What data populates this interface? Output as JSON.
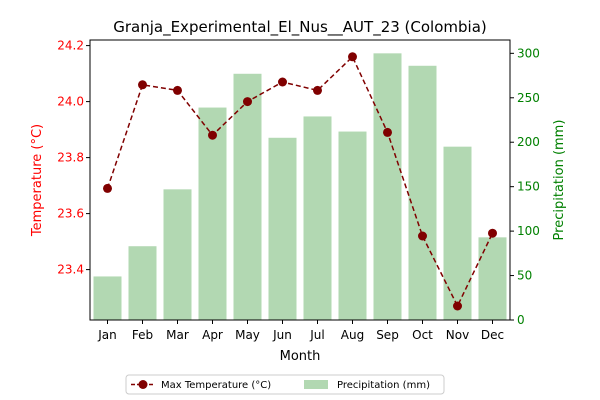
{
  "chart_data": {
    "type": "bar+line",
    "title": "Granja_Experimental_El_Nus__AUT_23 (Colombia)",
    "xlabel": "Month",
    "categories": [
      "Jan",
      "Feb",
      "Mar",
      "Apr",
      "May",
      "Jun",
      "Jul",
      "Aug",
      "Sep",
      "Oct",
      "Nov",
      "Dec"
    ],
    "left_axis": {
      "label": "Temperature (°C)",
      "color": "#ff0000",
      "ylim": [
        23.22,
        24.22
      ],
      "ticks": [
        23.4,
        23.6,
        23.8,
        24.0,
        24.2
      ],
      "tick_labels": [
        "23.4",
        "23.6",
        "23.8",
        "24.0",
        "24.2"
      ]
    },
    "right_axis": {
      "label": "Precipitation (mm)",
      "color": "#008000",
      "ylim": [
        0,
        315
      ],
      "ticks": [
        0,
        50,
        100,
        150,
        200,
        250,
        300
      ],
      "tick_labels": [
        "0",
        "50",
        "100",
        "150",
        "200",
        "250",
        "300"
      ]
    },
    "series": [
      {
        "name": "Max Temperature (°C)",
        "type": "line",
        "axis": "left",
        "color": "#800000",
        "values": [
          23.69,
          24.06,
          24.04,
          23.88,
          24.0,
          24.07,
          24.04,
          24.16,
          23.89,
          23.52,
          23.27,
          23.53
        ]
      },
      {
        "name": "Precipitation (mm)",
        "type": "bar",
        "axis": "right",
        "color": "#b2d8b2",
        "values": [
          49,
          83,
          147,
          239,
          277,
          205,
          229,
          212,
          300,
          286,
          195,
          93
        ]
      }
    ],
    "legend_position": "bottom-center",
    "grid": false
  }
}
